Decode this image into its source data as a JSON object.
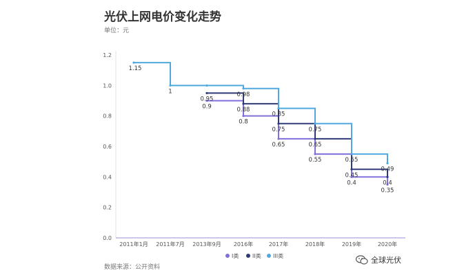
{
  "title": "光伏上网电价变化走势",
  "subtitle": "单位：元",
  "source": "数据来源：公开资料",
  "watermark": {
    "text": "全球光伏",
    "icon": "wechat-icon"
  },
  "chart_data": {
    "type": "line",
    "step": true,
    "categories": [
      "2011年1月",
      "2011年7月",
      "2013年9月",
      "2016年",
      "2017年",
      "2018年",
      "2019年",
      "2020年"
    ],
    "ylim": [
      0,
      1.2
    ],
    "yticks": [
      "0.0",
      "0.2",
      "0.4",
      "0.6",
      "0.8",
      "1.0",
      "1.2"
    ],
    "legend_position": "bottom-center",
    "series": [
      {
        "name": "I类",
        "color": "#7f6fdc",
        "values": [
          1.15,
          1,
          0.9,
          0.8,
          0.65,
          0.55,
          0.4,
          0.35
        ],
        "labels": [
          "",
          "",
          "0.9",
          "0.8",
          "0.65",
          "0.55",
          "0.4",
          "0.35"
        ]
      },
      {
        "name": "II类",
        "color": "#2e3a78",
        "values": [
          1.15,
          1,
          0.95,
          0.88,
          0.75,
          0.65,
          0.45,
          0.4
        ],
        "labels": [
          "",
          "",
          "0.95",
          "0.88",
          "0.75",
          "0.65",
          "0.45",
          "0.4"
        ]
      },
      {
        "name": "III类",
        "color": "#4fa9e0",
        "values": [
          1.15,
          1,
          1,
          0.98,
          0.85,
          0.75,
          0.55,
          0.49
        ],
        "labels": [
          "1.15",
          "1",
          "",
          "0.98",
          "0.85",
          "0.75",
          "0.55",
          "0.49"
        ]
      }
    ]
  }
}
